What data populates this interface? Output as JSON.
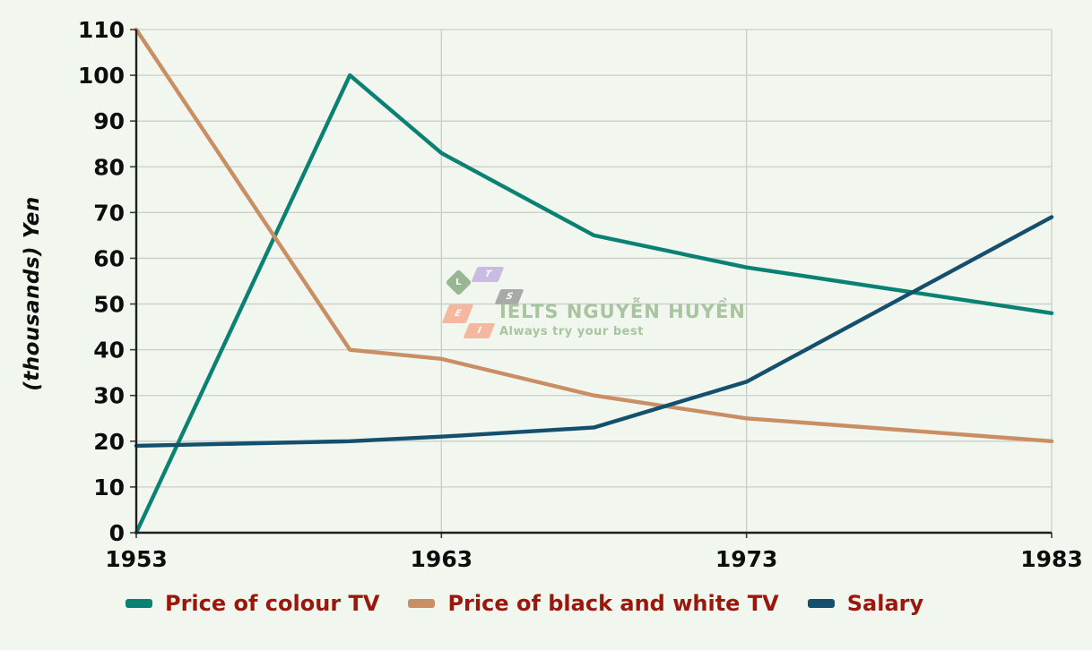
{
  "colors": {
    "background": "#f1f6ee",
    "gridline": "#c9cec8",
    "axis": "#1f1f1f",
    "tick_text": "#0d0d0d",
    "legend_text": "#9b170c",
    "watermark_text": "#a8c5a0"
  },
  "watermark": {
    "title": "IELTS NGUYỄN HUYỀN",
    "tagline": "Always try your best",
    "logo_letters": [
      "L",
      "T",
      "S",
      "E",
      "I"
    ],
    "logo_colors": [
      "#97b691",
      "#c8bce2",
      "#a7aaa6",
      "#f6b7a0",
      "#f6b7a0"
    ]
  },
  "chart_data": {
    "type": "line",
    "title": "",
    "xlabel": "",
    "ylabel": "(thousands) Yen",
    "xlim": [
      1953,
      1983
    ],
    "ylim": [
      0,
      110
    ],
    "x_ticks": [
      1953,
      1963,
      1973,
      1983
    ],
    "y_ticks": [
      0,
      10,
      20,
      30,
      40,
      50,
      60,
      70,
      80,
      90,
      100,
      110
    ],
    "grid": true,
    "legend_position": "bottom",
    "x": [
      1953,
      1960,
      1963,
      1968,
      1973,
      1983
    ],
    "series": [
      {
        "name": "Price of colour TV",
        "color": "#0b8174",
        "values": [
          0,
          100,
          83,
          65,
          58,
          48
        ]
      },
      {
        "name": "Price of black and white TV",
        "color": "#c98e63",
        "values": [
          110,
          40,
          38,
          30,
          25,
          20
        ]
      },
      {
        "name": "Salary",
        "color": "#14506e",
        "values": [
          19,
          20,
          21,
          23,
          33,
          69
        ]
      }
    ]
  }
}
